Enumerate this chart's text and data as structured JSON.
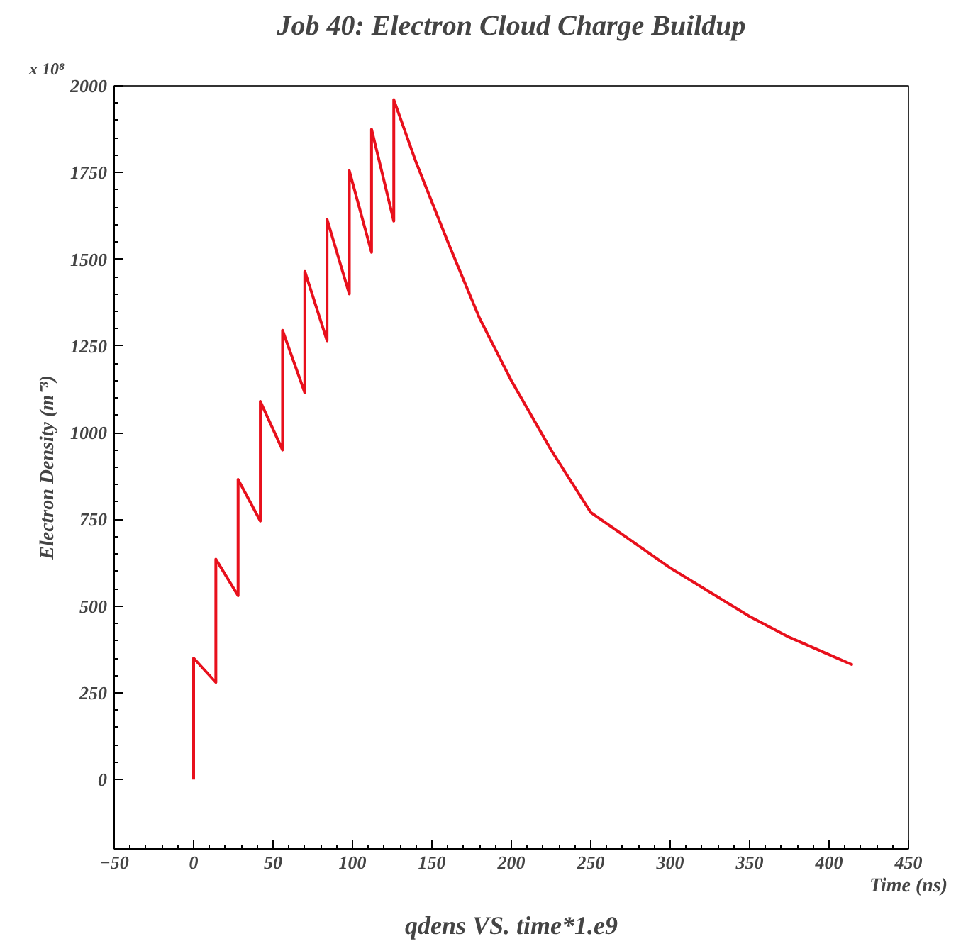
{
  "chart_data": {
    "type": "line",
    "title": "Job 40: Electron Cloud Charge Buildup",
    "xlabel": "Time (ns)",
    "ylabel": "Electron Density (m⁻³)",
    "annotations": [
      "x 10⁸",
      "qdens VS. time*1.e9"
    ],
    "x": [
      0,
      0,
      14,
      14,
      28,
      28,
      42,
      42,
      56,
      56,
      70,
      70,
      84,
      84,
      98,
      98,
      112,
      112,
      126,
      126,
      140,
      160,
      180,
      200,
      225,
      250,
      275,
      300,
      325,
      350,
      375,
      400,
      415
    ],
    "series": [
      {
        "color": "#e8101c",
        "values": [
          0,
          350,
          280,
          635,
          530,
          865,
          745,
          1090,
          950,
          1295,
          1115,
          1465,
          1265,
          1615,
          1400,
          1755,
          1520,
          1875,
          1610,
          1960,
          1780,
          1550,
          1330,
          1150,
          950,
          770,
          690,
          610,
          540,
          470,
          410,
          360,
          330
        ]
      }
    ],
    "xlim": [
      -50,
      450
    ],
    "xticks": [
      -50,
      0,
      50,
      100,
      150,
      200,
      250,
      300,
      350,
      400,
      450
    ],
    "ylim": [
      -200,
      2000
    ],
    "yticks": [
      0,
      250,
      500,
      750,
      1000,
      1250,
      1500,
      1750,
      2000
    ],
    "grid": false,
    "marker": "none",
    "line_style": "solid"
  }
}
